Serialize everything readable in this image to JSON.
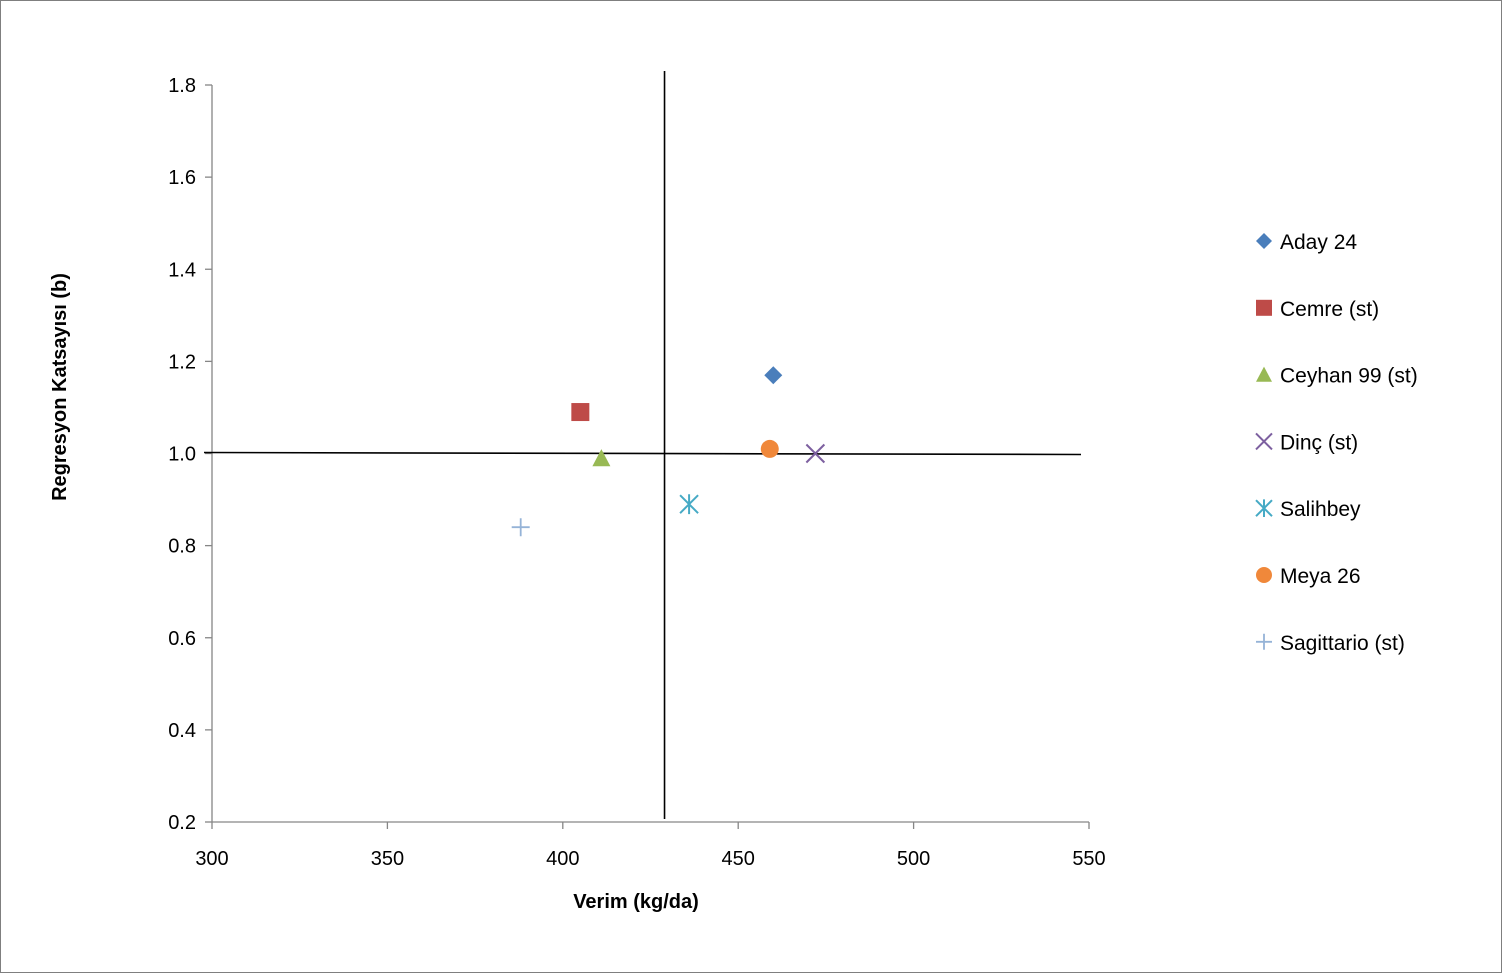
{
  "chart_data": {
    "type": "scatter",
    "title": "",
    "xlabel": "Verim (kg/da)",
    "ylabel": "Regresyon Katsayısı (b)",
    "xlim": [
      300,
      550
    ],
    "ylim": [
      0.2,
      1.8
    ],
    "x_ticks": [
      "300",
      "350",
      "400",
      "450",
      "500",
      "550"
    ],
    "y_ticks": [
      "0.2",
      "0.4",
      "0.6",
      "0.8",
      "1.0",
      "1.2",
      "1.4",
      "1.6",
      "1.8"
    ],
    "reference_lines": {
      "x_mean": 429,
      "y": 1.0
    },
    "legend_position": "right",
    "series": [
      {
        "name": "Aday 24",
        "marker": "diamond",
        "color": "#4a7ebb",
        "x": 460,
        "y": 1.17
      },
      {
        "name": "Cemre (st)",
        "marker": "square",
        "color": "#be4b48",
        "x": 405,
        "y": 1.09
      },
      {
        "name": "Ceyhan 99 (st)",
        "marker": "triangle",
        "color": "#98b954",
        "x": 411,
        "y": 0.99
      },
      {
        "name": "Dinç (st)",
        "marker": "x",
        "color": "#7d60a0",
        "x": 472,
        "y": 1.0
      },
      {
        "name": "Salihbey",
        "marker": "star",
        "color": "#46aac5",
        "x": 436,
        "y": 0.89
      },
      {
        "name": "Meya 26",
        "marker": "circle",
        "color": "#f0883a",
        "x": 459,
        "y": 1.01
      },
      {
        "name": "Sagittario (st)",
        "marker": "plus",
        "color": "#95b3d7",
        "x": 388,
        "y": 0.84
      }
    ]
  }
}
